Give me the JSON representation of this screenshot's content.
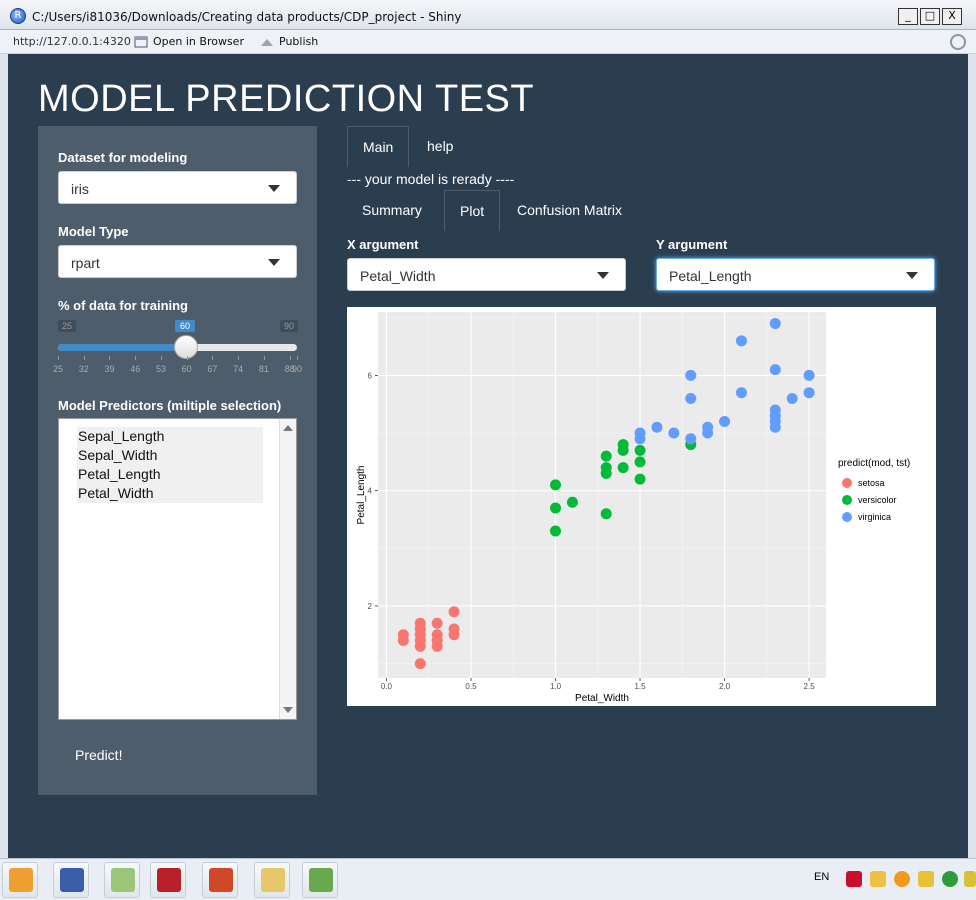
{
  "window": {
    "title": "C:/Users/i81036/Downloads/Creating data products/CDP_project - Shiny",
    "url": "http://127.0.0.1:4320",
    "open_in_browser": "Open in Browser",
    "publish": "Publish",
    "app_icon": "R",
    "minimize": "_",
    "maximize": "□",
    "close": "X"
  },
  "page": {
    "title": "MODEL PREDICTION TEST"
  },
  "sidebar": {
    "dataset_label": "Dataset for modeling",
    "dataset_value": "iris",
    "model_label": "Model Type",
    "model_value": "rpart",
    "training_label": "% of data for training",
    "slider": {
      "min": "25",
      "max": "90",
      "value": "60",
      "fraction": 0.538
    },
    "slider_ticks": [
      "25",
      "32",
      "39",
      "46",
      "53",
      "60",
      "67",
      "74",
      "81",
      "88",
      "90"
    ],
    "predictors_label": "Model Predictors (miltiple selection)",
    "predictors": [
      "Sepal_Length",
      "Sepal_Width",
      "Petal_Length",
      "Petal_Width"
    ],
    "predict_label": "Predict!"
  },
  "main": {
    "tabs": [
      "Main",
      "help"
    ],
    "status": "--- your model is rerady ----",
    "subtabs": [
      "Summary",
      "Plot",
      "Confusion Matrix"
    ],
    "x_label": "X argument",
    "x_value": "Petal_Width",
    "y_label": "Y argument",
    "y_value": "Petal_Length"
  },
  "chart_data": {
    "type": "scatter",
    "title": "",
    "xlabel": "Petal_Width",
    "ylabel": "Petal_Length",
    "xlim": [
      -0.05,
      2.6
    ],
    "ylim": [
      0.75,
      7.1
    ],
    "xticks": [
      "0.0",
      "0.5",
      "1.0",
      "1.5",
      "2.0",
      "2.5"
    ],
    "yticks": [
      "2",
      "4",
      "6"
    ],
    "legend_title": "predict(mod, tst)",
    "legend_position": "right",
    "series": [
      {
        "name": "setosa",
        "color": "#f8766d",
        "points": [
          [
            0.1,
            1.4
          ],
          [
            0.1,
            1.5
          ],
          [
            0.2,
            1.0
          ],
          [
            0.2,
            1.3
          ],
          [
            0.2,
            1.4
          ],
          [
            0.2,
            1.5
          ],
          [
            0.2,
            1.6
          ],
          [
            0.2,
            1.7
          ],
          [
            0.3,
            1.3
          ],
          [
            0.3,
            1.4
          ],
          [
            0.3,
            1.5
          ],
          [
            0.3,
            1.7
          ],
          [
            0.4,
            1.5
          ],
          [
            0.4,
            1.6
          ],
          [
            0.4,
            1.9
          ]
        ]
      },
      {
        "name": "versicolor",
        "color": "#00ba38",
        "points": [
          [
            1.0,
            3.3
          ],
          [
            1.0,
            3.7
          ],
          [
            1.0,
            4.1
          ],
          [
            1.1,
            3.8
          ],
          [
            1.3,
            3.6
          ],
          [
            1.3,
            4.3
          ],
          [
            1.3,
            4.4
          ],
          [
            1.3,
            4.6
          ],
          [
            1.4,
            4.4
          ],
          [
            1.4,
            4.7
          ],
          [
            1.4,
            4.8
          ],
          [
            1.5,
            4.2
          ],
          [
            1.5,
            4.5
          ],
          [
            1.5,
            4.7
          ],
          [
            1.8,
            4.8
          ]
        ]
      },
      {
        "name": "virginica",
        "color": "#619cff",
        "points": [
          [
            1.5,
            4.9
          ],
          [
            1.5,
            5.0
          ],
          [
            1.6,
            5.1
          ],
          [
            1.7,
            5.0
          ],
          [
            1.8,
            4.9
          ],
          [
            1.8,
            5.6
          ],
          [
            1.8,
            6.0
          ],
          [
            1.9,
            5.0
          ],
          [
            1.9,
            5.1
          ],
          [
            2.0,
            5.2
          ],
          [
            2.1,
            5.7
          ],
          [
            2.1,
            6.6
          ],
          [
            2.3,
            5.1
          ],
          [
            2.3,
            5.2
          ],
          [
            2.3,
            5.3
          ],
          [
            2.3,
            5.4
          ],
          [
            2.3,
            6.1
          ],
          [
            2.3,
            6.9
          ],
          [
            2.4,
            5.6
          ],
          [
            2.5,
            5.7
          ],
          [
            2.5,
            6.0
          ]
        ]
      }
    ]
  },
  "taskbar": {
    "language": "EN",
    "apps": [
      "outlook-icon",
      "remote-desktop-icon",
      "folders-icon",
      "acrobat-icon",
      "powerpoint-icon",
      "file-explorer-icon",
      "rstudio-icon"
    ],
    "tray": [
      "mcafee-icon",
      "mail-icon",
      "update-icon",
      "security-icon",
      "sync-icon",
      "notification-icon"
    ]
  }
}
